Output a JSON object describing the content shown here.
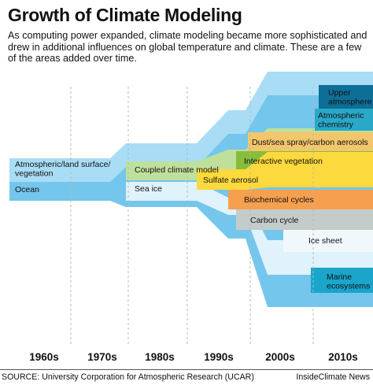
{
  "title": "Growth of Climate Modeling",
  "subtitle": "As computing power expanded, climate modeling became more sophisticated and drew in additional influences on global temperature and climate. These are a few of the areas added over time.",
  "source": "SOURCE: University Corporation for Atmospheric Research (UCAR)",
  "credit": "InsideClimate News",
  "chart_data": {
    "type": "area",
    "title": "Growth of Climate Modeling",
    "categories": [
      "1960s",
      "1970s",
      "1980s",
      "1990s",
      "2000s",
      "2010s"
    ],
    "grid": "dashed vertical separators between decades",
    "series": [
      {
        "name": "Ocean",
        "introduced": "1960s",
        "color": "#74c6ec"
      },
      {
        "name": "Atmospheric/land surface/ vegetation",
        "introduced": "1960s",
        "color": "#a8ddf5"
      },
      {
        "name": "Sea ice",
        "introduced": "1980s",
        "color": "#e0f2fb"
      },
      {
        "name": "Coupled climate model",
        "introduced": "1980s",
        "color": "#bfe09a"
      },
      {
        "name": "Sulfate aerosol",
        "introduced": "1990s",
        "color": "#fcd93c"
      },
      {
        "name": "Interactive vegetation",
        "introduced": "2000s",
        "color": "#86bd3a"
      },
      {
        "name": "Dust/sea spray/carbon aerosols",
        "introduced": "2000s",
        "color": "#f2c66c"
      },
      {
        "name": "Biochemical cycles",
        "introduced": "2000s",
        "color": "#f5a04f"
      },
      {
        "name": "Carbon cycle",
        "introduced": "2000s",
        "color": "#c4ccca"
      },
      {
        "name": "Ice sheet",
        "introduced": "2000s",
        "color": "#f0f8fc"
      },
      {
        "name": "Marine ecosystems",
        "introduced": "2000s",
        "color": "#1aa5cb"
      },
      {
        "name": "Atmospheric chemistry",
        "introduced": "2010s",
        "color": "#2aa8c8"
      },
      {
        "name": "Upper atmosphere",
        "introduced": "2010s",
        "color": "#0d6f98"
      }
    ]
  }
}
